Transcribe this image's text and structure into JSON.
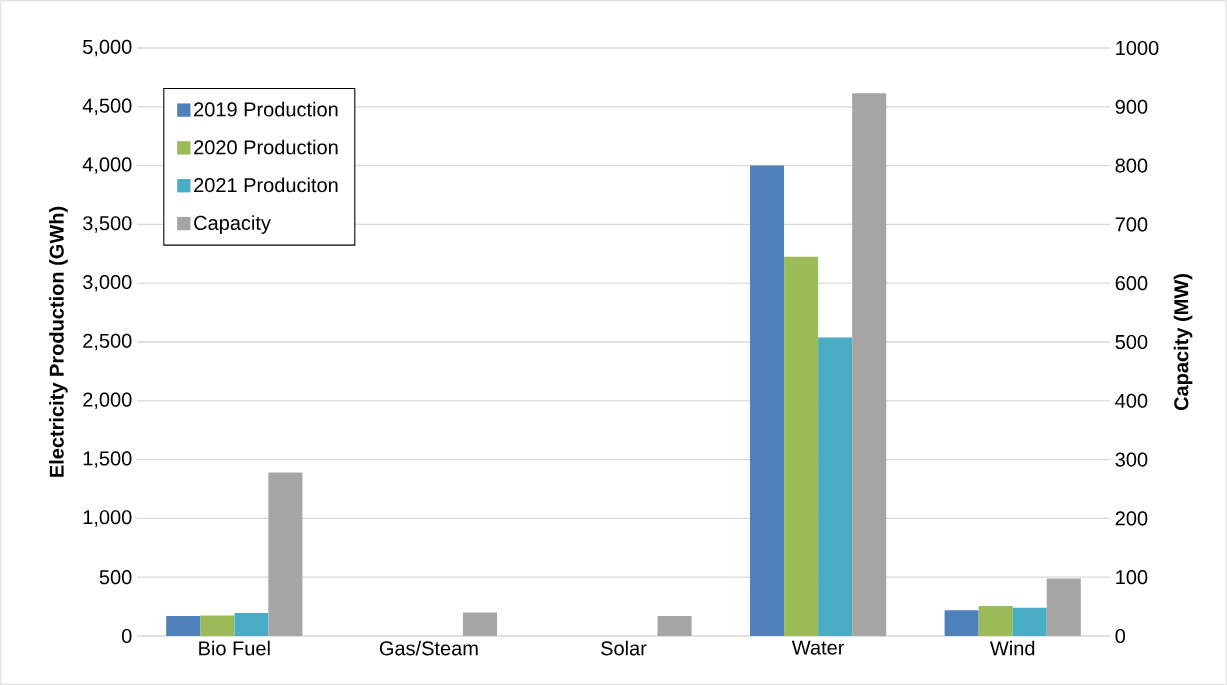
{
  "chart_data": {
    "type": "bar",
    "ylabel": "Electricity Production (GWh)",
    "y2label": "Capacity (MW)",
    "categories": [
      "Bio Fuel",
      "Gas/Steam",
      "Solar",
      "Water",
      "Wind"
    ],
    "series": [
      {
        "name": "2019 Production",
        "color": "#4f81bd",
        "values": [
          170,
          0,
          0,
          4000,
          220
        ]
      },
      {
        "name": "2020 Production",
        "color": "#9bbb59",
        "values": [
          175,
          0,
          0,
          3225,
          255
        ]
      },
      {
        "name": "2021 Produciton",
        "color": "#4bacc6",
        "values": [
          195,
          0,
          0,
          2540,
          240
        ]
      },
      {
        "name": "Capacity",
        "color": "#a5a5a5",
        "axis": "y2",
        "values": [
          278,
          40,
          34,
          923,
          98
        ]
      }
    ],
    "ylim": [
      0,
      5000
    ],
    "yticks": [
      0,
      {
        "value": 500,
        "label": "500"
      },
      {
        "value": 1000,
        "label": "1,000"
      },
      {
        "value": 1500,
        "label": "1,500"
      },
      {
        "value": 2000,
        "label": "2,000"
      },
      {
        "value": 2500,
        "label": "2,500"
      },
      {
        "value": 3000,
        "label": "3,000"
      },
      {
        "value": 3500,
        "label": "3,500"
      },
      {
        "value": 4000,
        "label": "4,000"
      },
      {
        "value": 4500,
        "label": "4,500"
      },
      {
        "value": 5000,
        "label": "5,000"
      }
    ],
    "y2lim": [
      0,
      1000
    ],
    "y2ticks": [
      0,
      100,
      200,
      300,
      400,
      500,
      600,
      700,
      800,
      900,
      1000
    ],
    "grid": "y",
    "legend": "top left"
  }
}
